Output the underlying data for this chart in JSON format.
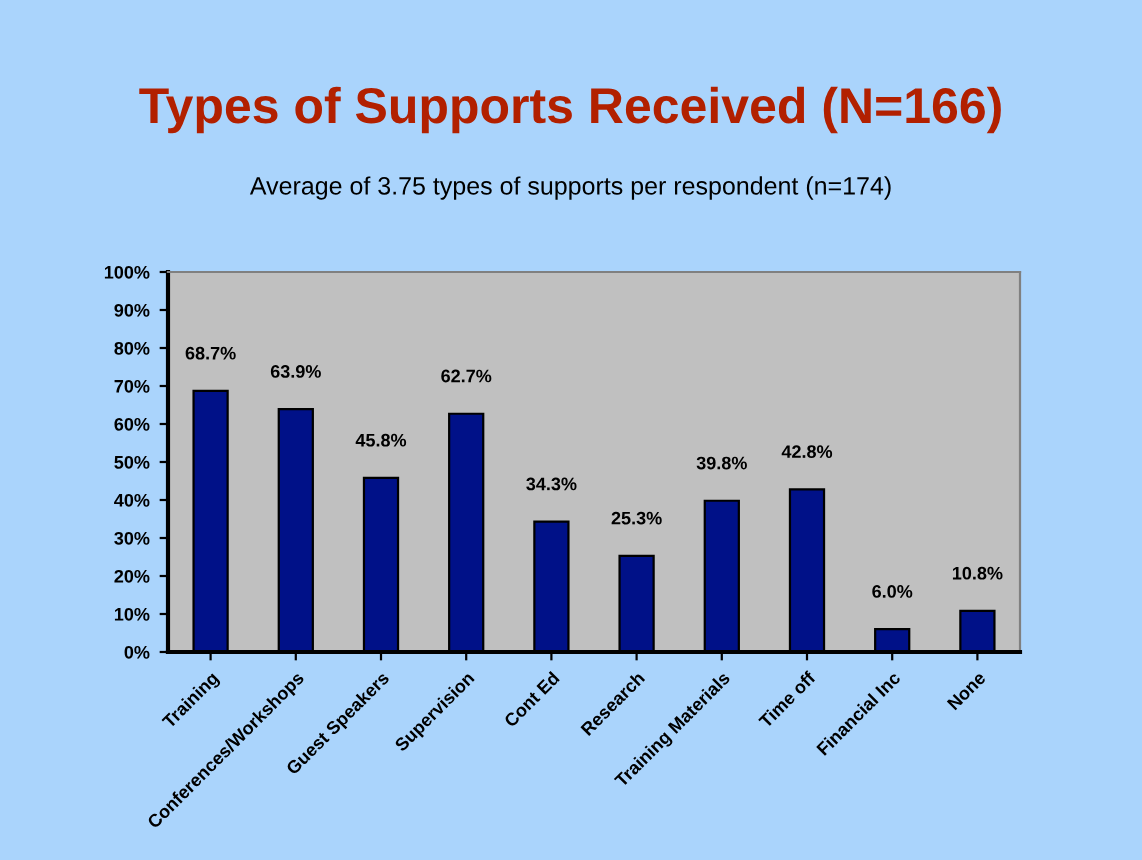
{
  "chart_data": {
    "type": "bar",
    "title": "Types of Supports Received (N=166)",
    "subtitle": "Average of 3.75 types of supports per respondent (n=174)",
    "categories": [
      "Training",
      "Conferences/Workshops",
      "Guest Speakers",
      "Supervision",
      "Cont Ed",
      "Research",
      "Training Materials",
      "Time off",
      "Financial Inc",
      "None"
    ],
    "values": [
      68.7,
      63.9,
      45.8,
      62.7,
      34.3,
      25.3,
      39.8,
      42.8,
      6.0,
      10.8
    ],
    "value_labels": [
      "68.7%",
      "63.9%",
      "45.8%",
      "62.7%",
      "34.3%",
      "25.3%",
      "39.8%",
      "42.8%",
      "6.0%",
      "10.8%"
    ],
    "color": "#001188",
    "ylim": [
      0,
      100
    ],
    "yticks": [
      {
        "value": 0,
        "label": "0%"
      },
      {
        "value": 10,
        "label": "10%"
      },
      {
        "value": 20,
        "label": "20%"
      },
      {
        "value": 30,
        "label": "30%"
      },
      {
        "value": 40,
        "label": "40%"
      },
      {
        "value": 50,
        "label": "50%"
      },
      {
        "value": 60,
        "label": "60%"
      },
      {
        "value": 70,
        "label": "70%"
      },
      {
        "value": 80,
        "label": "80%"
      },
      {
        "value": 90,
        "label": "90%"
      },
      {
        "value": 100,
        "label": "100%"
      }
    ],
    "grid": false
  }
}
